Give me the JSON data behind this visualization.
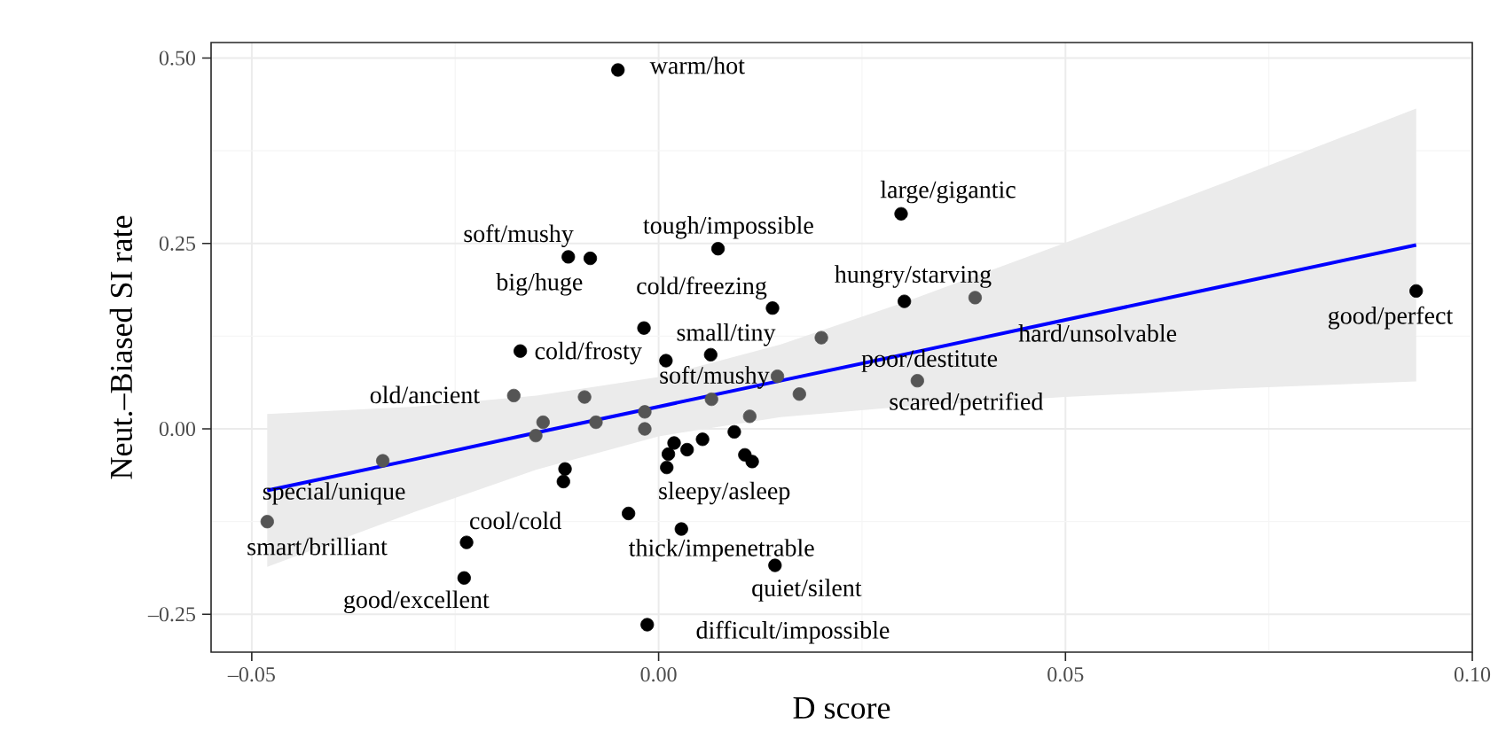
{
  "chart_data": {
    "type": "scatter",
    "xlabel": "D score",
    "ylabel": "Neut.–Biased SI rate",
    "xlim": [
      -0.055,
      0.1
    ],
    "ylim": [
      -0.301,
      0.521
    ],
    "xticks": [
      {
        "value": -0.05,
        "label": "–0.05"
      },
      {
        "value": 0,
        "label": "0.00"
      },
      {
        "value": 0.05,
        "label": "0.05"
      },
      {
        "value": 0.1,
        "label": "0.10"
      }
    ],
    "yticks": [
      {
        "value": -0.25,
        "label": "–0.25"
      },
      {
        "value": 0,
        "label": "0.00"
      },
      {
        "value": 0.25,
        "label": "0.25"
      },
      {
        "value": 0.5,
        "label": "0.50"
      }
    ],
    "grid": true,
    "series": [
      {
        "marker": "circle",
        "x": [
          -0.005,
          0.0298,
          0.0073,
          -0.0111,
          -0.0084,
          0.0302,
          0.0389,
          0.0931,
          0.014,
          -0.0018,
          0.02,
          -0.017,
          0.0064,
          0.0009,
          0.0146,
          0.0065,
          0.0173,
          0.0318,
          -0.0178,
          -0.0091,
          -0.0142,
          -0.0077,
          -0.0017,
          -0.0017,
          -0.0151,
          0.0112,
          0.0093,
          0.0054,
          0.0019,
          0.0012,
          0.0035,
          0.001,
          0.0106,
          0.0115,
          -0.0339,
          -0.0481,
          -0.0115,
          -0.0117,
          -0.0037,
          0.0028,
          -0.0236,
          -0.0239,
          0.0143,
          -0.0014
        ],
        "values": [
          0.484,
          0.29,
          0.243,
          0.232,
          0.23,
          0.172,
          0.177,
          0.186,
          0.163,
          0.136,
          0.123,
          0.105,
          0.1,
          0.092,
          0.071,
          0.04,
          0.047,
          0.065,
          0.045,
          0.043,
          0.009,
          0.009,
          0.023,
          0.0,
          -0.009,
          0.017,
          -0.004,
          -0.014,
          -0.019,
          -0.034,
          -0.028,
          -0.052,
          -0.035,
          -0.044,
          -0.043,
          -0.125,
          -0.054,
          -0.071,
          -0.114,
          -0.135,
          -0.153,
          -0.201,
          -0.184,
          -0.264
        ],
        "colors": [
          "#000000",
          "#000000",
          "#000000",
          "#000000",
          "#000000",
          "#000000",
          "#555555",
          "#000000",
          "#000000",
          "#000000",
          "#555555",
          "#000000",
          "#000000",
          "#000000",
          "#555555",
          "#555555",
          "#555555",
          "#555555",
          "#555555",
          "#555555",
          "#555555",
          "#555555",
          "#555555",
          "#555555",
          "#555555",
          "#555555",
          "#000000",
          "#000000",
          "#000000",
          "#000000",
          "#000000",
          "#000000",
          "#000000",
          "#000000",
          "#555555",
          "#555555",
          "#000000",
          "#000000",
          "#000000",
          "#000000",
          "#000000",
          "#000000",
          "#000000",
          "#000000"
        ]
      },
      {
        "type": "line",
        "color": "#0000ff",
        "x": [
          -0.0481,
          -0.03,
          -0.015,
          0,
          0.015,
          0.03,
          0.05,
          0.07,
          0.0931
        ],
        "values": [
          -0.083,
          -0.041,
          -0.005,
          0.03,
          0.065,
          0.1,
          0.147,
          0.194,
          0.248
        ],
        "lower": [
          -0.186,
          -0.112,
          -0.055,
          -0.01,
          0.016,
          0.03,
          0.043,
          0.054,
          0.064
        ],
        "upper": [
          0.02,
          0.03,
          0.045,
          0.07,
          0.114,
          0.17,
          0.251,
          0.334,
          0.432
        ]
      }
    ],
    "annotations": [
      {
        "text": "warm/hot",
        "x": -0.005,
        "y": 0.484
      },
      {
        "text": "large/gigantic",
        "x": 0.0298,
        "y": 0.29
      },
      {
        "text": "tough/impossible",
        "x": 0.0073,
        "y": 0.243
      },
      {
        "text": "soft/mushy",
        "x": -0.0111,
        "y": 0.232
      },
      {
        "text": "big/huge",
        "x": -0.0084,
        "y": 0.23
      },
      {
        "text": "cold/freezing",
        "x": 0.014,
        "y": 0.163
      },
      {
        "text": "hungry/starving",
        "x": 0.0302,
        "y": 0.172
      },
      {
        "text": "hard/unsolvable",
        "x": 0.0389,
        "y": 0.177
      },
      {
        "text": "good/perfect",
        "x": 0.0931,
        "y": 0.186
      },
      {
        "text": "cold/frosty",
        "x": -0.017,
        "y": 0.105
      },
      {
        "text": "small/tiny",
        "x": 0.0064,
        "y": 0.1
      },
      {
        "text": "old/ancient",
        "x": -0.0178,
        "y": 0.045
      },
      {
        "text": "soft/mushy",
        "x": 0.0065,
        "y": 0.04
      },
      {
        "text": "poor/destitute",
        "x": 0.02,
        "y": 0.123
      },
      {
        "text": "scared/petrified",
        "x": 0.0318,
        "y": 0.065
      },
      {
        "text": "special/unique",
        "x": -0.0339,
        "y": -0.043
      },
      {
        "text": "smart/brilliant",
        "x": -0.0481,
        "y": -0.125
      },
      {
        "text": "sleepy/asleep",
        "x": 0.0115,
        "y": -0.044
      },
      {
        "text": "cool/cold",
        "x": -0.0236,
        "y": -0.153
      },
      {
        "text": "thick/impenetrable",
        "x": 0.0028,
        "y": -0.135
      },
      {
        "text": "good/excellent",
        "x": -0.0239,
        "y": -0.201
      },
      {
        "text": "quiet/silent",
        "x": 0.0143,
        "y": -0.184
      },
      {
        "text": "difficult/impossible",
        "x": -0.0014,
        "y": -0.264
      }
    ]
  }
}
